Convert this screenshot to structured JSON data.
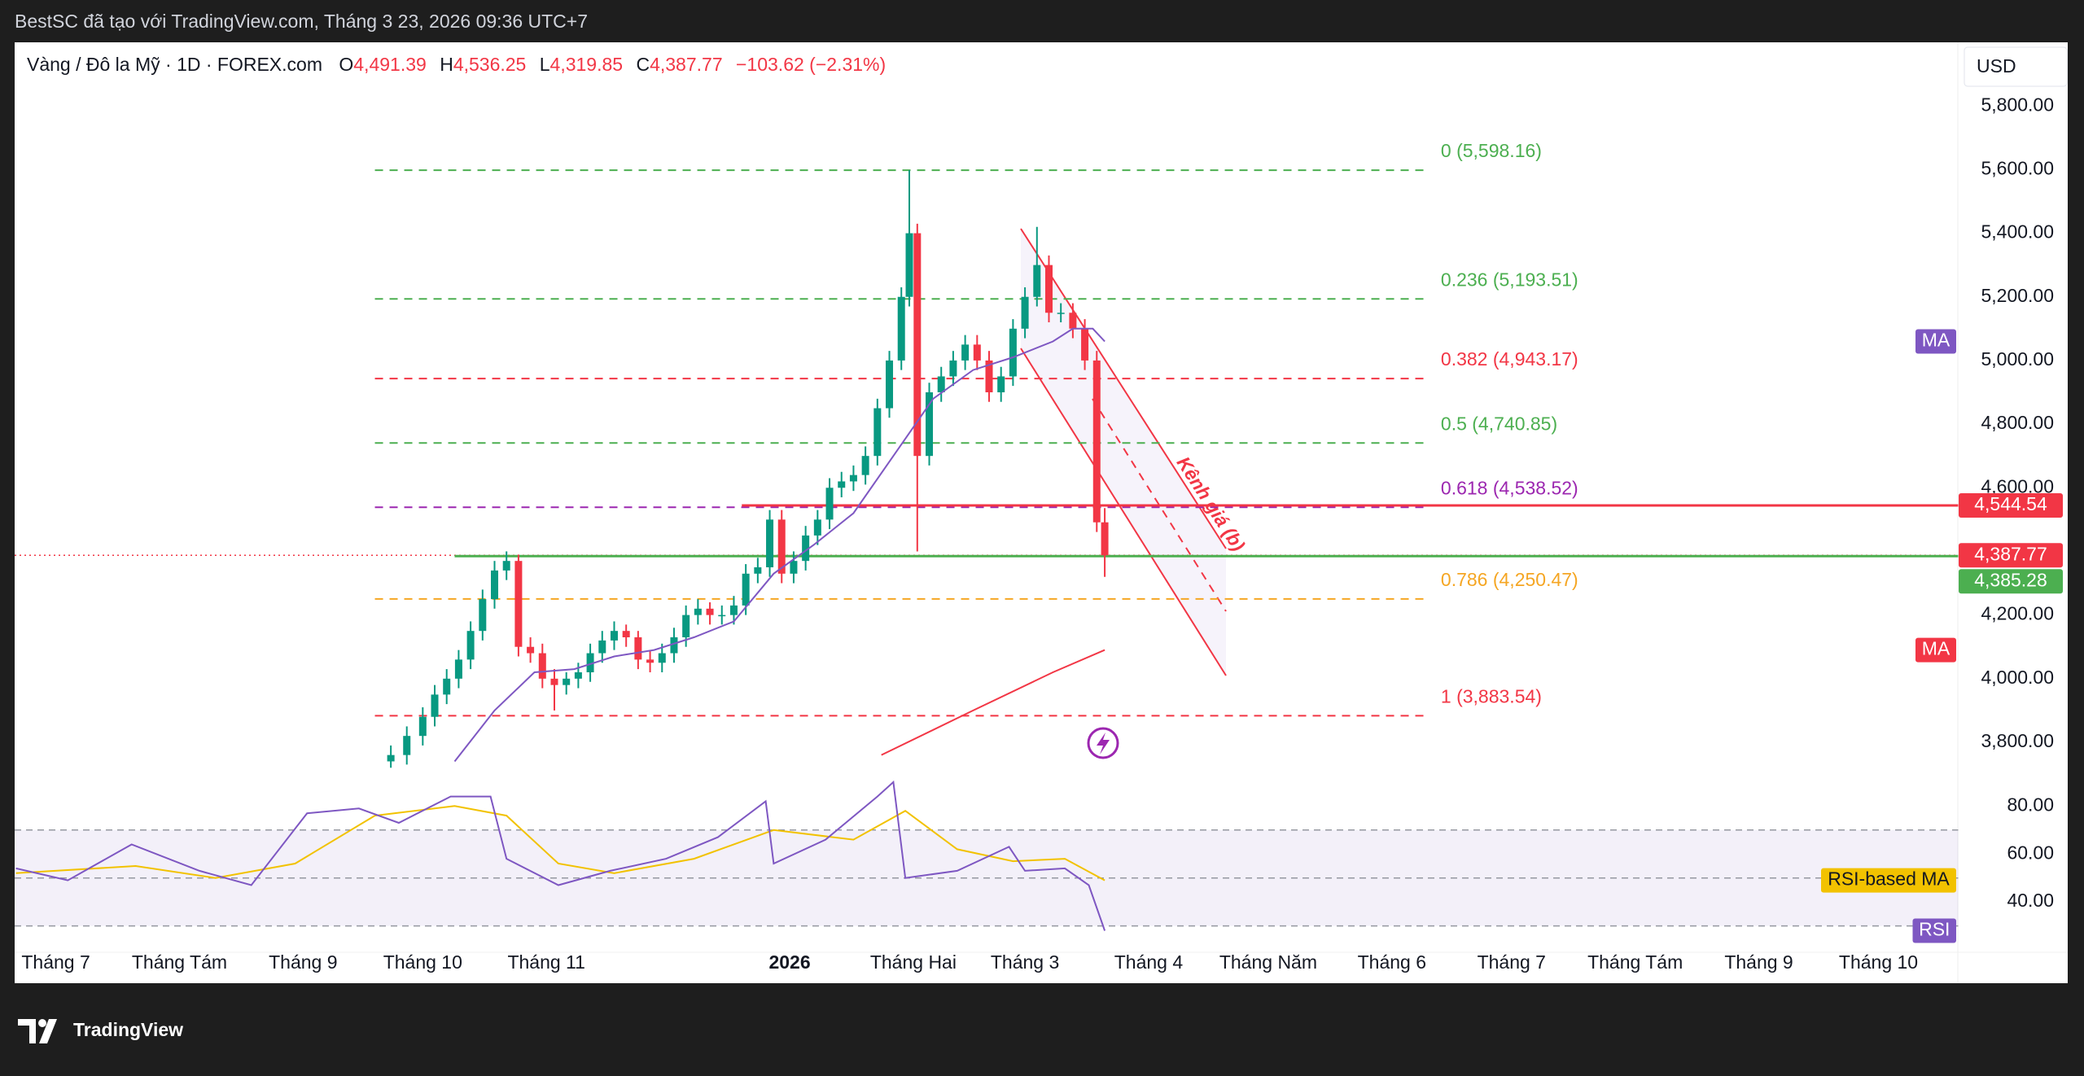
{
  "header": {
    "credit": "BestSC đã tạo với TradingView.com, Tháng 3 23, 2026 09:36 UTC+7",
    "symbol": "Vàng / Đô la Mỹ · 1D · FOREX.com",
    "ohlc": [
      {
        "key": "O",
        "value": "4,491.39"
      },
      {
        "key": "H",
        "value": "4,536.25"
      },
      {
        "key": "L",
        "value": "4,319.85"
      },
      {
        "key": "C",
        "value": "4,387.77"
      }
    ],
    "change": "−103.62 (−2.31%)",
    "currency": "USD"
  },
  "chart_data": [
    {
      "type": "candlestick",
      "up_color": "#089981",
      "down_color": "#f23645",
      "x": [
        84,
        88,
        92,
        95,
        98,
        101,
        104,
        107,
        110,
        113,
        116,
        119,
        122,
        125,
        128,
        131,
        134,
        137,
        140,
        143,
        146,
        149,
        152,
        155,
        158,
        161,
        164,
        167,
        170,
        173,
        176,
        179,
        182,
        185,
        188,
        191,
        194,
        197,
        200,
        203,
        206,
        209,
        212,
        214,
        216,
        219,
        222,
        225,
        228,
        231,
        234,
        237,
        240,
        243,
        246,
        249,
        252,
        255,
        258,
        261,
        263
      ],
      "open": [
        3740,
        3760,
        3820,
        3880,
        3950,
        4000,
        4060,
        4150,
        4250,
        4340,
        4370,
        4100,
        4080,
        4000,
        3980,
        4000,
        4020,
        4080,
        4120,
        4150,
        4130,
        4060,
        4050,
        4080,
        4130,
        4200,
        4220,
        4200,
        4200,
        4230,
        4330,
        4350,
        4500,
        4330,
        4370,
        4450,
        4500,
        4600,
        4620,
        4640,
        4700,
        4850,
        5000,
        5200,
        5400,
        4700,
        4900,
        4950,
        5000,
        5050,
        5000,
        4900,
        4950,
        5100,
        5200,
        5300,
        5150,
        5150,
        5100,
        5000,
        4491.39
      ],
      "high": [
        3790,
        3850,
        3910,
        3980,
        4030,
        4090,
        4180,
        4280,
        4370,
        4400,
        4390,
        4130,
        4110,
        4030,
        4020,
        4050,
        4110,
        4150,
        4180,
        4170,
        4150,
        4090,
        4110,
        4160,
        4230,
        4250,
        4240,
        4230,
        4260,
        4360,
        4380,
        4530,
        4530,
        4400,
        4480,
        4530,
        4630,
        4650,
        4670,
        4730,
        4880,
        5030,
        5230,
        5598.16,
        5430,
        4930,
        4980,
        5030,
        5080,
        5080,
        5030,
        4980,
        5130,
        5230,
        5420,
        5330,
        5180,
        5180,
        5130,
        5030,
        4536.25
      ],
      "low": [
        3720,
        3730,
        3790,
        3850,
        3920,
        3970,
        4030,
        4120,
        4220,
        4310,
        4070,
        4050,
        3970,
        3900,
        3950,
        3970,
        3990,
        4050,
        4090,
        4100,
        4030,
        4020,
        4020,
        4050,
        4100,
        4170,
        4170,
        4170,
        4170,
        4200,
        4300,
        4320,
        4300,
        4300,
        4340,
        4420,
        4470,
        4570,
        4590,
        4610,
        4670,
        4820,
        4970,
        5170,
        4400,
        4670,
        4870,
        4920,
        4970,
        4970,
        4870,
        4870,
        4920,
        5070,
        5170,
        5120,
        5120,
        5070,
        4970,
        4461,
        4319.85
      ],
      "close": [
        3760,
        3820,
        3880,
        3950,
        4000,
        4060,
        4150,
        4250,
        4340,
        4370,
        4100,
        4080,
        4000,
        3980,
        4000,
        4020,
        4080,
        4120,
        4150,
        4130,
        4060,
        4050,
        4080,
        4130,
        4200,
        4220,
        4200,
        4200,
        4230,
        4330,
        4350,
        4500,
        4330,
        4370,
        4450,
        4500,
        4600,
        4620,
        4640,
        4700,
        4850,
        5000,
        5200,
        5400,
        4700,
        4900,
        4950,
        5000,
        5050,
        5000,
        4900,
        4950,
        5100,
        5200,
        5300,
        5150,
        5150,
        5100,
        5000,
        4491.39,
        4387.77
      ],
      "xlim": [
        -10,
        477
      ],
      "xticks": [
        {
          "value": 0,
          "label": "Tháng 7"
        },
        {
          "value": 31,
          "label": "Tháng Tám"
        },
        {
          "value": 62,
          "label": "Tháng 9"
        },
        {
          "value": 92,
          "label": "Tháng 10"
        },
        {
          "value": 123,
          "label": "Tháng 11"
        },
        {
          "value": 184,
          "label": "2026"
        },
        {
          "value": 215,
          "label": "Tháng Hai"
        },
        {
          "value": 243,
          "label": "Tháng 3"
        },
        {
          "value": 274,
          "label": "Tháng 4"
        },
        {
          "value": 304,
          "label": "Tháng Năm"
        },
        {
          "value": 335,
          "label": "Tháng 6"
        },
        {
          "value": 365,
          "label": "Tháng 7"
        },
        {
          "value": 396,
          "label": "Tháng Tám"
        },
        {
          "value": 427,
          "label": "Tháng 9"
        },
        {
          "value": 457,
          "label": "Tháng 10"
        }
      ],
      "ylim": [
        3690,
        6000
      ],
      "yticks": [
        {
          "value": 3800,
          "label": "3,800.00"
        },
        {
          "value": 4000,
          "label": "4,000.00"
        },
        {
          "value": 4200,
          "label": "4,200.00"
        },
        {
          "value": 4400,
          "label": "4,400.00"
        },
        {
          "value": 4600,
          "label": "4,600.00"
        },
        {
          "value": 4800,
          "label": "4,800.00"
        },
        {
          "value": 5000,
          "label": "5,000.00"
        },
        {
          "value": 5200,
          "label": "5,200.00"
        },
        {
          "value": 5400,
          "label": "5,400.00"
        },
        {
          "value": 5600,
          "label": "5,600.00"
        },
        {
          "value": 5800,
          "label": "5,800.00"
        }
      ],
      "overlays": [
        {
          "name": "MA",
          "color": "#7e57c2",
          "x": [
            100,
            110,
            120,
            130,
            140,
            150,
            160,
            170,
            180,
            190,
            200,
            210,
            220,
            230,
            240,
            250,
            255,
            260,
            263
          ],
          "values": [
            3740,
            3900,
            4020,
            4030,
            4070,
            4090,
            4130,
            4180,
            4330,
            4420,
            4520,
            4700,
            4880,
            4970,
            5010,
            5060,
            5100,
            5100,
            5060
          ]
        },
        {
          "name": "MA",
          "color": "#f23645",
          "x": [
            207,
            230,
            250,
            263
          ],
          "values": [
            3760,
            3900,
            4020,
            4090
          ]
        }
      ],
      "fib_x": [
        80,
        344
      ],
      "fib": [
        {
          "label": "0 (5,598.16)",
          "value": 5598.16,
          "color": "#4caf50"
        },
        {
          "label": "0.236 (5,193.51)",
          "value": 5193.51,
          "color": "#4caf50"
        },
        {
          "label": "0.382 (4,943.17)",
          "value": 4943.17,
          "color": "#f23645"
        },
        {
          "label": "0.5 (4,740.85)",
          "value": 4740.85,
          "color": "#4caf50"
        },
        {
          "label": "0.618 (4,538.52)",
          "value": 4538.52,
          "color": "#9c27b0"
        },
        {
          "label": "0.786 (4,250.47)",
          "value": 4250.47,
          "color": "#f5a623"
        },
        {
          "label": "1 (3,883.54)",
          "value": 3883.54,
          "color": "#f23645"
        }
      ],
      "price_lines": [
        {
          "value": 4544.54,
          "label": "4,544.54",
          "color": "#f23645",
          "from": 172
        },
        {
          "value": 4387.77,
          "label": "4,387.77",
          "color": "#f23645",
          "style": "dotted"
        },
        {
          "value": 4385.28,
          "label": "4,385.28",
          "color": "#4caf50",
          "from": 100
        }
      ],
      "channel_label": "Kênh giá (b)"
    },
    {
      "type": "line",
      "ylim": [
        19,
        92
      ],
      "yticks": [
        {
          "value": 40,
          "label": "40.00"
        },
        {
          "value": 60,
          "label": "60.00"
        },
        {
          "value": 80,
          "label": "80.00"
        }
      ],
      "levels": [
        30,
        50,
        70
      ],
      "series": [
        {
          "name": "RSI",
          "color": "#7e57c2",
          "x": [
            -10,
            3,
            19,
            36,
            49,
            63,
            76,
            86,
            99,
            109,
            113,
            126,
            139,
            153,
            166,
            178,
            180,
            193,
            206,
            210,
            213,
            226,
            239,
            243,
            253,
            259,
            263
          ],
          "values": [
            54,
            49,
            64,
            53,
            47,
            77,
            79,
            73,
            84,
            84,
            58,
            47,
            53,
            58,
            67,
            82,
            56,
            66,
            84,
            90,
            50,
            53,
            63,
            53,
            54,
            47,
            28
          ]
        },
        {
          "name": "RSI-based MA",
          "color": "#f2c200",
          "x": [
            -10,
            20,
            40,
            60,
            80,
            100,
            113,
            126,
            140,
            160,
            180,
            200,
            213,
            226,
            240,
            253,
            263
          ],
          "values": [
            52,
            55,
            50,
            56,
            76,
            80,
            76,
            56,
            52,
            58,
            70,
            66,
            78,
            62,
            57,
            58,
            49
          ]
        }
      ]
    }
  ],
  "footer": {
    "logo": "TradingView"
  }
}
